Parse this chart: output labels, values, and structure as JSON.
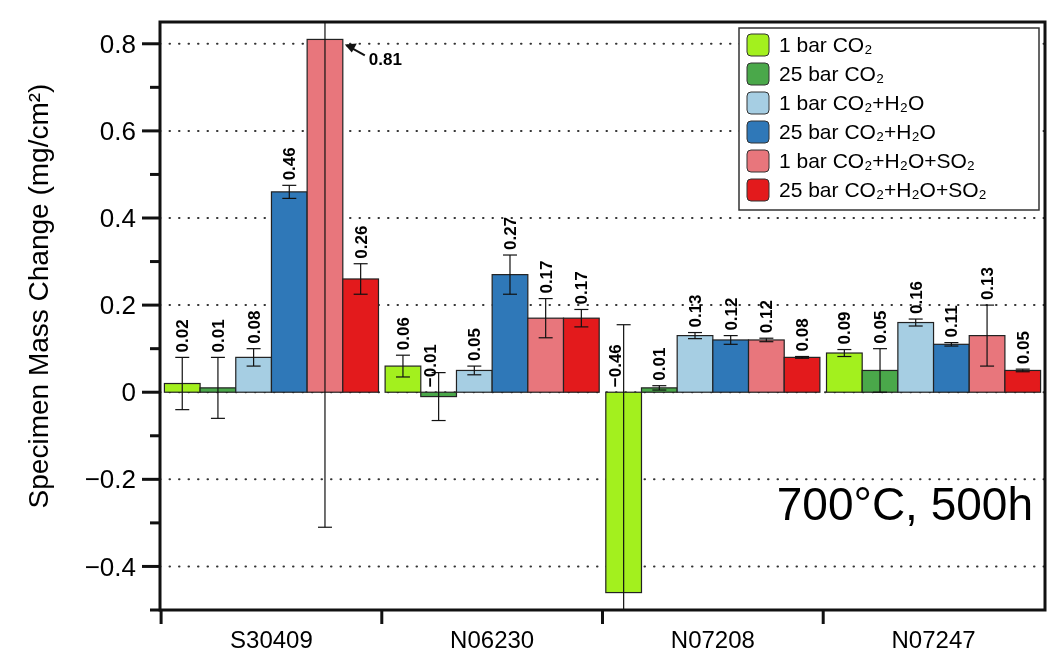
{
  "chart_data": {
    "type": "bar",
    "ylabel": "Specimen Mass Change (mg/cm²)",
    "categories": [
      "S30409",
      "N06230",
      "N07208",
      "N07247"
    ],
    "series": [
      {
        "name": "1 bar CO₂",
        "color": "#a3f01e",
        "values": [
          0.02,
          0.06,
          -0.46,
          0.09
        ],
        "errors": [
          0.06,
          0.025,
          [
            -0.5,
            0.155
          ],
          0.008
        ]
      },
      {
        "name": "25 bar CO₂",
        "color": "#4aa84a",
        "values": [
          0.01,
          -0.01,
          0.01,
          0.05
        ],
        "errors": [
          0.07,
          0.055,
          0.005,
          0.05
        ]
      },
      {
        "name": "1 bar CO₂+H₂O",
        "color": "#a6cee3",
        "values": [
          0.08,
          0.05,
          0.13,
          0.16
        ],
        "errors": [
          0.02,
          0.01,
          0.007,
          0.008
        ]
      },
      {
        "name": "25 bar CO₂+H₂O",
        "color": "#2f78b8",
        "values": [
          0.46,
          0.27,
          0.12,
          0.11
        ],
        "errors": [
          0.015,
          0.045,
          0.01,
          0.004
        ]
      },
      {
        "name": "1 bar CO₂+H₂O+SO₂",
        "color": "#e8767c",
        "values": [
          0.81,
          0.17,
          0.12,
          0.13
        ],
        "errors": [
          [
            -0.31,
            0.85
          ],
          0.045,
          0.004,
          0.07
        ]
      },
      {
        "name": "25 bar CO₂+H₂O+SO₂",
        "color": "#e31a1c",
        "values": [
          0.26,
          0.17,
          0.08,
          0.05
        ],
        "errors": [
          0.035,
          0.02,
          0.002,
          0.003
        ]
      }
    ],
    "ylim": [
      -0.5,
      0.85
    ],
    "yticks": [
      {
        "value": -0.5,
        "label": null
      },
      -0.4,
      {
        "value": -0.3,
        "label": null
      },
      -0.2,
      {
        "value": -0.1,
        "label": null
      },
      0,
      {
        "value": 0.1,
        "label": null
      },
      0.2,
      {
        "value": 0.3,
        "label": null
      },
      0.4,
      {
        "value": 0.5,
        "label": null
      },
      0.6,
      {
        "value": 0.7,
        "label": null
      },
      0.8
    ],
    "grid": "y",
    "legend": "top right",
    "data_labels": true,
    "annotations": [
      "700°C, 500h"
    ]
  }
}
